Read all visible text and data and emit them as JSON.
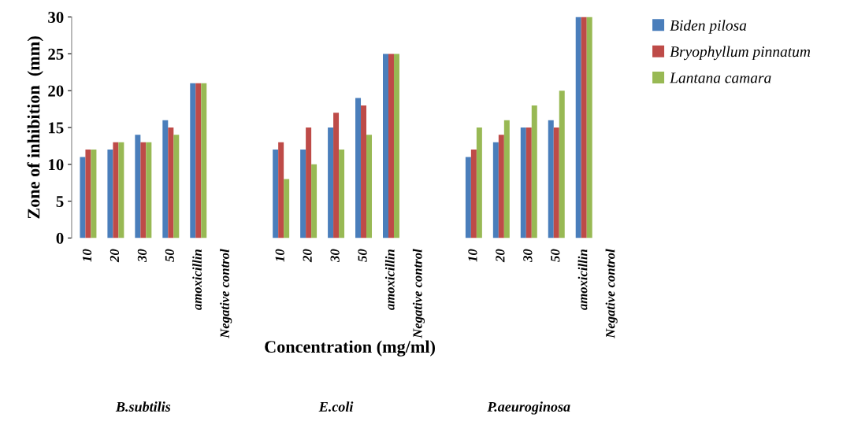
{
  "chart_data": {
    "type": "bar",
    "xlabel": "Concentration (mg/ml)",
    "ylabel": "Zone of inhibition  (mm)",
    "categories": [
      "10",
      "20",
      "30",
      "50",
      "amoxicillin",
      "Negative control",
      null,
      "10",
      "20",
      "30",
      "50",
      "amoxicillin",
      "Negative control",
      null,
      "10",
      "20",
      "30",
      "50",
      "amoxicillin",
      "Negative control"
    ],
    "series": [
      {
        "name": "Biden pilosa",
        "color": "#4a7ebb",
        "values": [
          11,
          12,
          14,
          16,
          21,
          null,
          null,
          12,
          12,
          15,
          19,
          25,
          null,
          null,
          11,
          13,
          15,
          16,
          30,
          null
        ]
      },
      {
        "name": "Bryophyllum pinnatum",
        "color": "#be4b48",
        "values": [
          12,
          13,
          13,
          15,
          21,
          null,
          null,
          13,
          15,
          17,
          18,
          25,
          null,
          null,
          12,
          14,
          15,
          15,
          30,
          null
        ]
      },
      {
        "name": "Lantana camara",
        "color": "#98b954",
        "values": [
          12,
          13,
          13,
          14,
          21,
          null,
          null,
          8,
          10,
          12,
          14,
          25,
          null,
          null,
          15,
          16,
          18,
          20,
          30,
          null
        ]
      }
    ],
    "annotations": [
      "B.subtilis",
      "E.coli",
      "P.aeuroginosa"
    ],
    "ylim": [
      0,
      30
    ],
    "yticks": [
      0,
      5,
      10,
      15,
      20,
      25,
      30
    ],
    "grid": false,
    "legend": "top right"
  }
}
